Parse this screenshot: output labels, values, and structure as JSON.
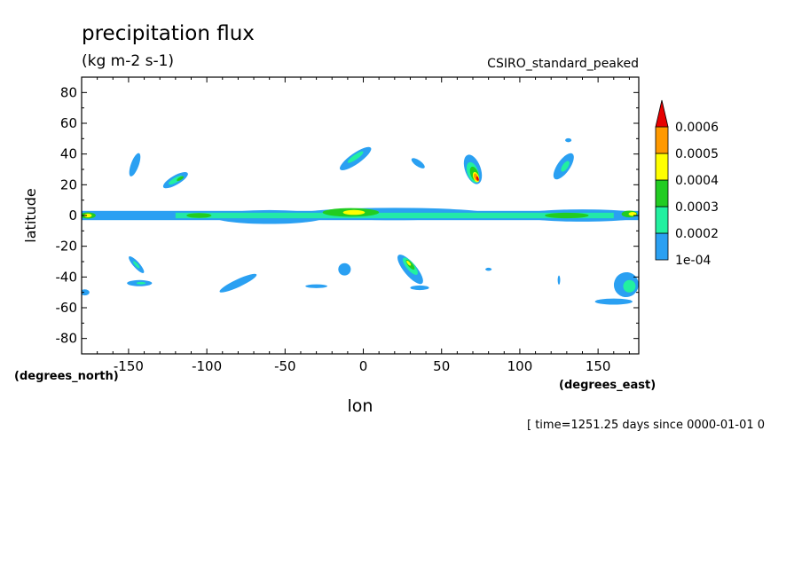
{
  "chart_data": {
    "type": "heatmap",
    "title": "precipitation flux",
    "subtitle": "(kg m-2 s-1)",
    "dataset_label": "CSIRO_standard_peaked",
    "xlabel": "lon",
    "ylabel": "latitude",
    "x_units_label": "(degrees_east)",
    "y_units_label": "(degrees_north)",
    "time_label": "[ time=1251.25 days since 0000-01-01 0",
    "xlim": [
      -180,
      176
    ],
    "ylim": [
      -90,
      90
    ],
    "x_ticks": [
      -150,
      -100,
      -50,
      0,
      50,
      100,
      150
    ],
    "y_ticks": [
      80,
      60,
      40,
      20,
      0,
      -20,
      -40,
      -60,
      -80
    ],
    "colorbar": {
      "levels": [
        "1e-04",
        "0.0002",
        "0.0003",
        "0.0004",
        "0.0005",
        "0.0006"
      ],
      "colors": [
        "#2aa0f2",
        "#22f0a0",
        "#22cc22",
        "#ffff00",
        "#ff9900",
        "#e60000"
      ]
    },
    "features": [
      {
        "name": "equatorial-band",
        "lon": [
          -180,
          176
        ],
        "lat_center": 0,
        "lat_halfwidth": 3,
        "level": 0
      },
      {
        "name": "equatorial-band-core",
        "lon": [
          -120,
          160
        ],
        "lat_center": 0,
        "lat_halfwidth": 1.8,
        "level": 1
      },
      {
        "name": "equator-max-west",
        "lon": -176,
        "lat": 0,
        "level": 3
      },
      {
        "name": "equator-max-center",
        "lon": -6,
        "lat": 2,
        "level": 3
      },
      {
        "name": "equator-max-east",
        "lon": 172,
        "lat": 1,
        "level": 3
      },
      {
        "name": "arabia-plume",
        "lon": 70,
        "lat": 28,
        "level": 5
      },
      {
        "name": "south-atlantic-plume",
        "lon": 30,
        "lat": -35,
        "level": 3
      },
      {
        "name": "north-pacific-streak",
        "lon": -118,
        "lat": 23,
        "level": 2
      },
      {
        "name": "north-atlantic-streak",
        "lon": -5,
        "lat": 38,
        "level": 1
      },
      {
        "name": "northwest-pacific-streak",
        "lon": 128,
        "lat": 30,
        "level": 1
      },
      {
        "name": "south-pacific-streak",
        "lon": -145,
        "lat": -32,
        "level": 1
      },
      {
        "name": "southeast-pacific-streak",
        "lon": 170,
        "lat": -45,
        "level": 1
      }
    ]
  }
}
